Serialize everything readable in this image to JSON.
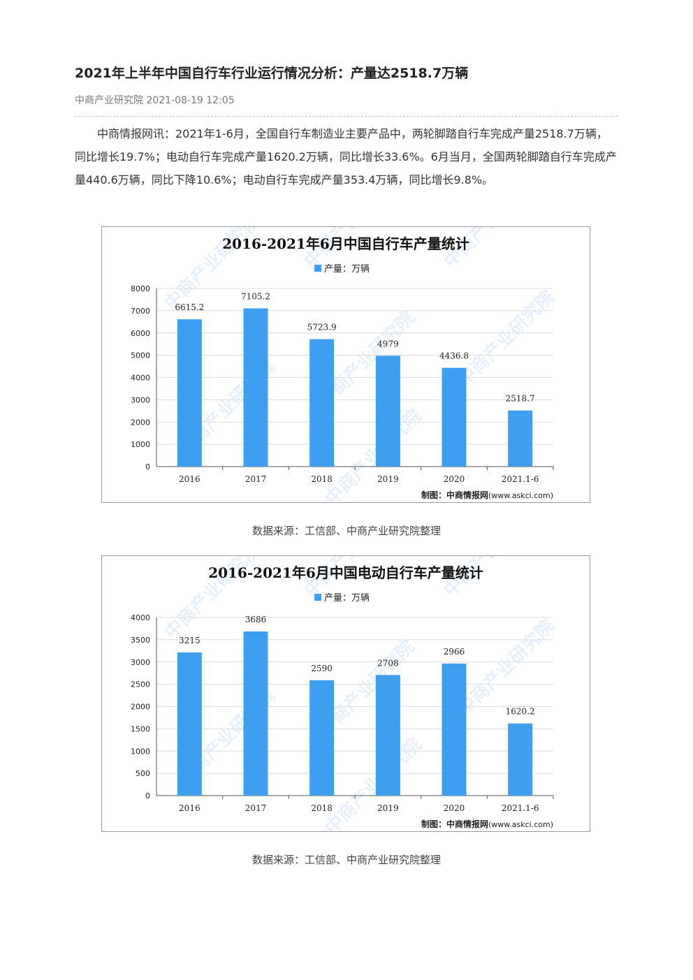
{
  "article": {
    "title": "2021年上半年中国自行车行业运行情况分析：产量达2518.7万辆",
    "meta": "中商产业研究院 2021-08-19 12:05",
    "paragraph": "中商情报网讯：2021年1-6月，全国自行车制造业主要产品中，两轮脚踏自行车完成产量2518.7万辆，同比增长19.7%；电动自行车完成产量1620.2万辆，同比增长33.6%。6月当月，全国两轮脚踏自行车完成产量440.6万辆，同比下降10.6%；电动自行车完成产量353.4万辆，同比增长9.8%。"
  },
  "figures": [
    {
      "watermark": "中商产业研究院",
      "credit_prefix": "制图：",
      "credit_brand": "中商情报网",
      "credit_url": "(www.askci.com)",
      "source": "数据来源：工信部、中商产业研究院整理"
    },
    {
      "watermark": "中商产业研究院",
      "credit_prefix": "制图：",
      "credit_brand": "中商情报网",
      "credit_url": "(www.askci.com)",
      "source": "数据来源：工信部、中商产业研究院整理"
    }
  ],
  "chart_data": [
    {
      "type": "bar",
      "title": "2016-2021年6月中国自行车产量统计",
      "categories": [
        "2016",
        "2017",
        "2018",
        "2019",
        "2020",
        "2021.1-6"
      ],
      "series": [
        {
          "name": "产量：万辆",
          "values": [
            6615.2,
            7105.2,
            5723.9,
            4979,
            4436.8,
            2518.7
          ]
        }
      ],
      "data_labels": [
        "6615.2",
        "7105.2",
        "5723.9",
        "4979",
        "4436.8",
        "2518.7"
      ],
      "xlabel": "",
      "ylabel": "",
      "ylim": [
        0,
        8000
      ],
      "yticks": [
        0,
        1000,
        2000,
        3000,
        4000,
        5000,
        6000,
        7000,
        8000
      ],
      "legend_position": "top-center",
      "grid": true,
      "bar_color": "#3e9ef0"
    },
    {
      "type": "bar",
      "title": "2016-2021年6月中国电动自行车产量统计",
      "categories": [
        "2016",
        "2017",
        "2018",
        "2019",
        "2020",
        "2021.1-6"
      ],
      "series": [
        {
          "name": "产量：万辆",
          "values": [
            3215,
            3686,
            2590,
            2708,
            2966,
            1620.2
          ]
        }
      ],
      "data_labels": [
        "3215",
        "3686",
        "2590",
        "2708",
        "2966",
        "1620.2"
      ],
      "xlabel": "",
      "ylabel": "",
      "ylim": [
        0,
        4000
      ],
      "yticks": [
        0,
        500,
        1000,
        1500,
        2000,
        2500,
        3000,
        3500,
        4000
      ],
      "legend_position": "top-center",
      "grid": true,
      "bar_color": "#3e9ef0"
    }
  ]
}
